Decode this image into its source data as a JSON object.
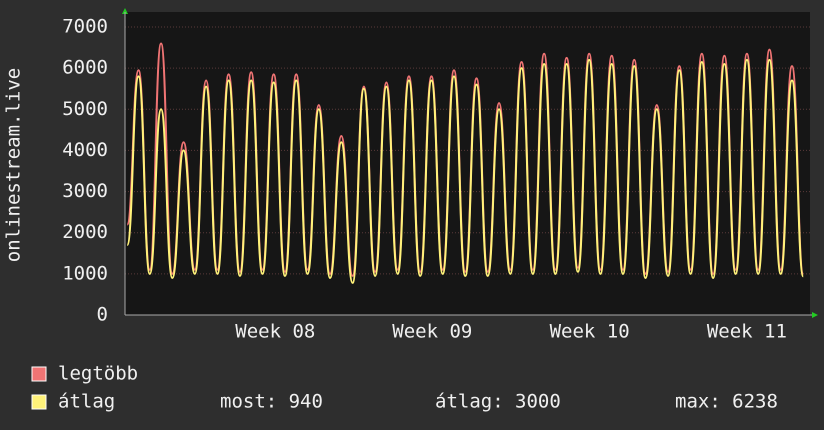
{
  "chart_data": {
    "type": "line",
    "y_label": "onlinestream.live",
    "x": [
      0.1,
      0.6,
      1.1,
      1.6,
      2.1,
      2.6,
      3.1,
      3.6,
      4.1,
      4.6,
      5.1,
      5.6,
      6.1,
      6.6,
      7.1,
      7.6,
      8.1,
      8.6,
      9.1,
      9.6,
      10.1,
      10.6,
      11.1,
      11.6,
      12.1,
      12.6,
      13.1,
      13.6,
      14.1,
      14.6,
      15.1,
      15.6,
      16.1,
      16.6,
      17.1,
      17.6,
      18.1,
      18.6,
      19.1,
      19.6,
      20.1,
      20.6,
      21.1,
      21.6,
      22.1,
      22.6,
      23.1,
      23.6,
      24.1,
      24.6,
      25.1,
      25.6,
      26.1,
      26.6,
      27.1,
      27.6,
      28.1,
      28.6,
      29.1,
      29.6,
      30.1
    ],
    "series": [
      {
        "name": "legtöbb",
        "color": "#f07474",
        "values": [
          2200,
          5950,
          1100,
          6600,
          1000,
          4200,
          1100,
          5700,
          1100,
          5850,
          1050,
          5900,
          1100,
          5850,
          1050,
          5850,
          1100,
          5100,
          1000,
          4350,
          950,
          5550,
          1050,
          5650,
          1100,
          5800,
          1050,
          5800,
          1100,
          5950,
          1050,
          5750,
          1050,
          5150,
          1100,
          6150,
          1100,
          6350,
          1100,
          6250,
          1150,
          6350,
          1100,
          6300,
          1100,
          6200,
          1000,
          5100,
          1050,
          6050,
          1100,
          6350,
          1000,
          6300,
          1100,
          6350,
          1100,
          6450,
          1100,
          6050,
          1000
        ]
      },
      {
        "name": "átlag",
        "color": "#fff27a",
        "values": [
          1700,
          5800,
          1000,
          5000,
          900,
          4000,
          1000,
          5550,
          1000,
          5700,
          950,
          5700,
          1000,
          5650,
          950,
          5700,
          1000,
          5000,
          900,
          4200,
          780,
          5500,
          950,
          5550,
          1000,
          5700,
          950,
          5700,
          1000,
          5800,
          950,
          5600,
          950,
          5000,
          1000,
          6000,
          1000,
          6100,
          1000,
          6100,
          1050,
          6200,
          1000,
          6100,
          1000,
          6050,
          900,
          5000,
          950,
          5950,
          1000,
          6150,
          900,
          6100,
          1000,
          6200,
          1000,
          6200,
          1000,
          5700,
          940
        ]
      }
    ],
    "xlim": [
      0,
      30.4
    ],
    "xticks": [
      {
        "value": 6.67,
        "label": "Week 08"
      },
      {
        "value": 13.64,
        "label": "Week 09"
      },
      {
        "value": 20.62,
        "label": "Week 10"
      },
      {
        "value": 27.6,
        "label": "Week 11"
      }
    ],
    "ylim": [
      0,
      7000
    ],
    "yticks": [
      0,
      1000,
      2000,
      3000,
      4000,
      5000,
      6000,
      7000
    ],
    "grid": true,
    "stats": [
      {
        "label": "most:",
        "value": 940
      },
      {
        "label": "átlag:",
        "value": 3000
      },
      {
        "label": "max:",
        "value": 6238
      }
    ]
  }
}
